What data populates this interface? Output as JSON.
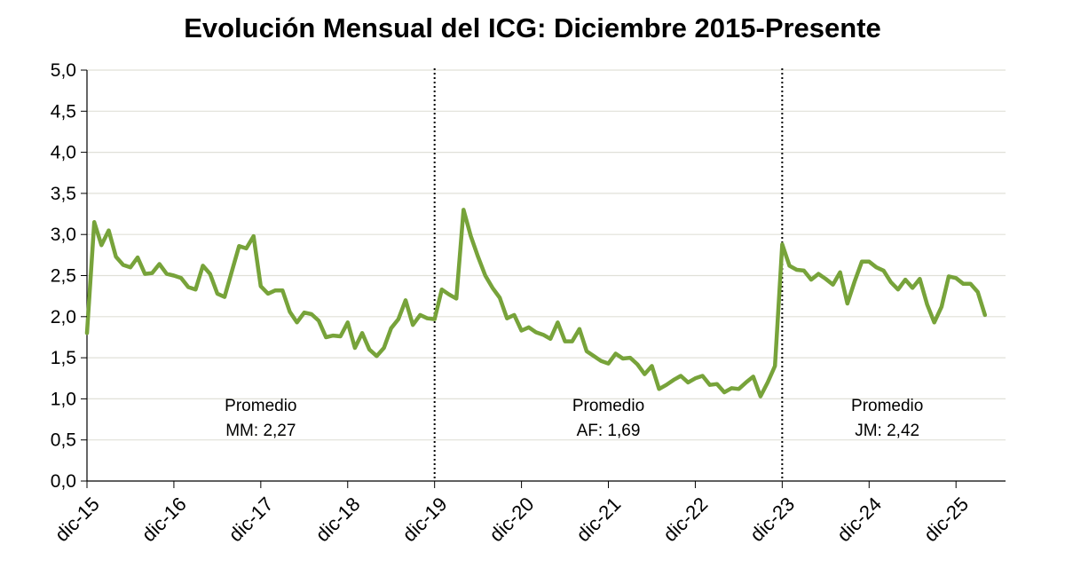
{
  "chart_data": {
    "type": "line",
    "title": "Evolución Mensual del ICG: Diciembre 2015-Presente",
    "xlabel": "",
    "ylabel": "",
    "ylim": [
      0,
      5
    ],
    "grid": true,
    "y_ticks": [
      "0,0",
      "0,5",
      "1,0",
      "1,5",
      "2,0",
      "2,5",
      "3,0",
      "3,5",
      "4,0",
      "4,5",
      "5,0"
    ],
    "x_ticks": [
      "dic-15",
      "dic-16",
      "dic-17",
      "dic-18",
      "dic-19",
      "dic-20",
      "dic-21",
      "dic-22",
      "dic-23",
      "dic-24",
      "dic-25"
    ],
    "line_color": "#77a33a",
    "series": [
      {
        "name": "ICG",
        "x_start_month_index": 0,
        "values": [
          1.8,
          3.15,
          2.87,
          3.05,
          2.73,
          2.63,
          2.6,
          2.72,
          2.52,
          2.53,
          2.64,
          2.52,
          2.5,
          2.47,
          2.36,
          2.33,
          2.62,
          2.52,
          2.28,
          2.24,
          2.55,
          2.86,
          2.83,
          2.98,
          2.37,
          2.28,
          2.32,
          2.32,
          2.06,
          1.93,
          2.05,
          2.03,
          1.95,
          1.75,
          1.77,
          1.76,
          1.93,
          1.62,
          1.8,
          1.6,
          1.52,
          1.62,
          1.86,
          1.97,
          2.2,
          1.9,
          2.02,
          1.98,
          1.97,
          2.33,
          2.27,
          2.22,
          3.3,
          2.98,
          2.73,
          2.5,
          2.35,
          2.23,
          1.98,
          2.02,
          1.83,
          1.87,
          1.81,
          1.78,
          1.73,
          1.93,
          1.7,
          1.7,
          1.85,
          1.58,
          1.52,
          1.46,
          1.43,
          1.55,
          1.49,
          1.5,
          1.42,
          1.3,
          1.4,
          1.12,
          1.17,
          1.23,
          1.28,
          1.2,
          1.25,
          1.28,
          1.17,
          1.18,
          1.08,
          1.13,
          1.12,
          1.2,
          1.27,
          1.03,
          1.2,
          1.4,
          2.88,
          2.62,
          2.57,
          2.56,
          2.45,
          2.52,
          2.46,
          2.39,
          2.54,
          2.16,
          2.43,
          2.67,
          2.67,
          2.6,
          2.56,
          2.42,
          2.33,
          2.45,
          2.35,
          2.46,
          2.15,
          1.93,
          2.12,
          2.49,
          2.47,
          2.4,
          2.4,
          2.3,
          2.02
        ]
      }
    ],
    "periods": [
      {
        "start_month_index": 0,
        "end_month_index": 48,
        "label_line1": "Promedio",
        "label_line2": "MM: 2,27"
      },
      {
        "start_month_index": 48,
        "end_month_index": 96,
        "label_line1": "Promedio",
        "label_line2": "AF: 1,69"
      },
      {
        "start_month_index": 96,
        "end_month_index": 125,
        "label_line1": "Promedio",
        "label_line2": "JM: 2,42"
      }
    ],
    "dividers_month_index": [
      48,
      96
    ]
  }
}
